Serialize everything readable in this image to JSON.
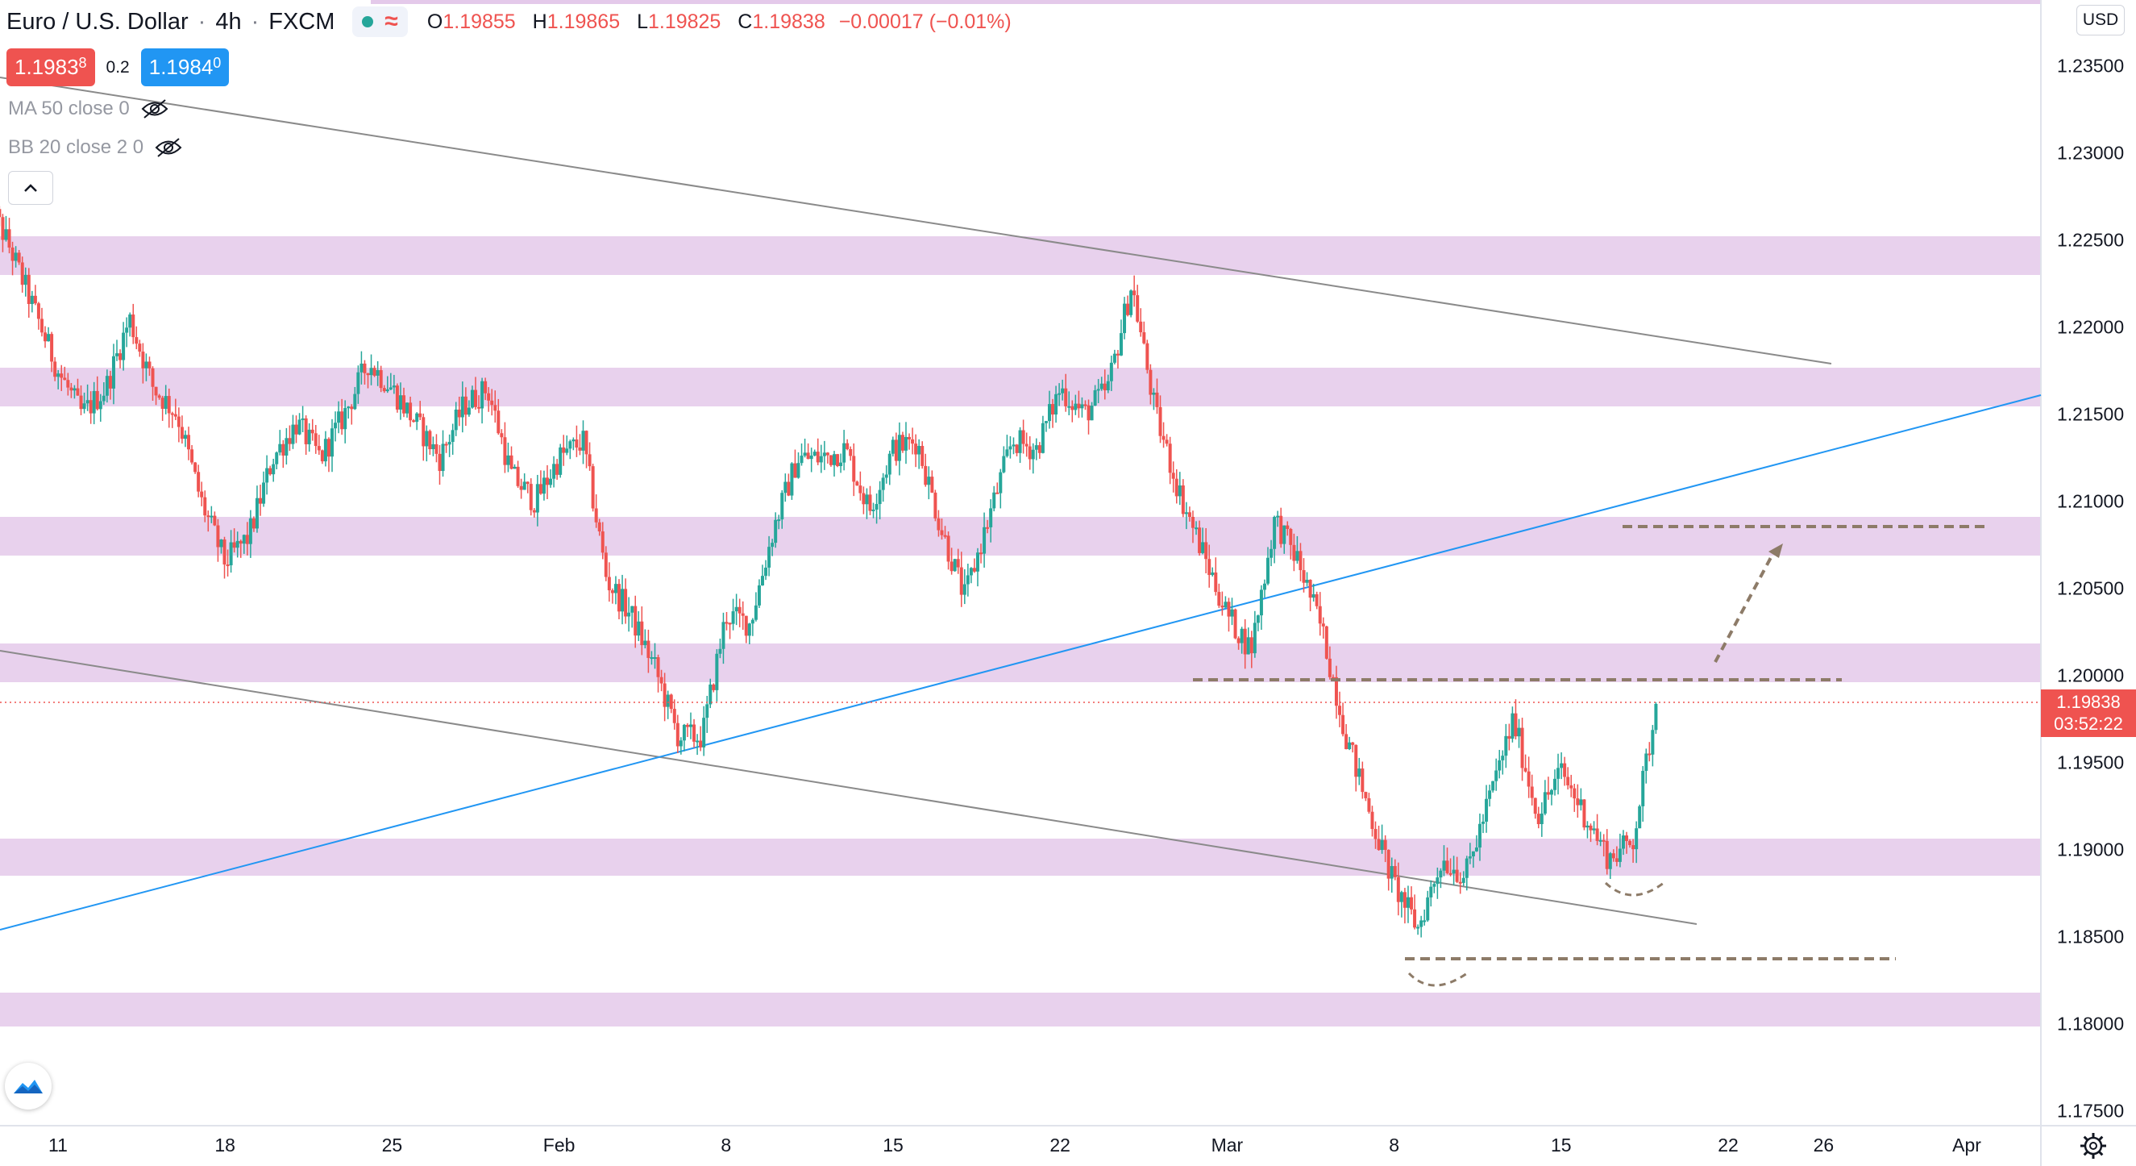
{
  "header": {
    "symbol": "Euro / U.S. Dollar",
    "interval": "4h",
    "exchange": "FXCM",
    "open_label": "O",
    "open": "1.19855",
    "high_label": "H",
    "high": "1.19865",
    "low_label": "L",
    "low": "1.19825",
    "close_label": "C",
    "close": "1.19838",
    "change": "−0.00017 (−0.01%)"
  },
  "prices": {
    "bid_main": "1.1983",
    "bid_sup": "8",
    "spread": "0.2",
    "ask_main": "1.1984",
    "ask_sup": "0"
  },
  "indicators": [
    {
      "label": "MA 50 close 0"
    },
    {
      "label": "BB 20 close 2 0"
    }
  ],
  "currency_button": "USD",
  "last_price": {
    "value": "1.19838",
    "countdown": "03:52:22"
  },
  "colors": {
    "up": "#26a69a",
    "down": "#ef5350",
    "zone": "#e4c9ea",
    "trend_gray": "#8a8a8a",
    "trend_blue": "#2196f3",
    "annotation": "#8d7b68"
  },
  "icons": [
    "eye-off-icon",
    "chevron-up-icon",
    "tradingview-logo-icon",
    "settings-gear-icon"
  ],
  "chart_data": {
    "type": "candlestick",
    "title": "Euro / U.S. Dollar",
    "interval": "4h",
    "xlabel": "",
    "ylabel": "",
    "ylim": [
      1.1725,
      1.2385
    ],
    "x_tick_labels": [
      "11",
      "18",
      "25",
      "Feb",
      "8",
      "15",
      "22",
      "Mar",
      "8",
      "15",
      "22",
      "26",
      "Apr"
    ],
    "y_tick_values": [
      1.235,
      1.23,
      1.225,
      1.22,
      1.215,
      1.21,
      1.205,
      1.2,
      1.195,
      1.19,
      1.185,
      1.18,
      1.175
    ],
    "y_tick_labels": [
      "1.23500",
      "1.23000",
      "1.22500",
      "1.22000",
      "1.21500",
      "1.21000",
      "1.20500",
      "1.20000",
      "1.19500",
      "1.19000",
      "1.18500",
      "1.18000",
      "1.17500"
    ],
    "last_price": 1.19838,
    "close_path": [
      {
        "date": "Jan 8",
        "price": 1.2275
      },
      {
        "date": "Jan 9",
        "price": 1.2245
      },
      {
        "date": "Jan 11",
        "price": 1.2175
      },
      {
        "date": "Jan 12",
        "price": 1.215
      },
      {
        "date": "Jan 13",
        "price": 1.2165
      },
      {
        "date": "Jan 14",
        "price": 1.2205
      },
      {
        "date": "Jan 15",
        "price": 1.2165
      },
      {
        "date": "Jan 16",
        "price": 1.215
      },
      {
        "date": "Jan 17",
        "price": 1.21
      },
      {
        "date": "Jan 18",
        "price": 1.2065
      },
      {
        "date": "Jan 19",
        "price": 1.208
      },
      {
        "date": "Jan 20",
        "price": 1.2125
      },
      {
        "date": "Jan 21",
        "price": 1.2145
      },
      {
        "date": "Jan 22",
        "price": 1.2125
      },
      {
        "date": "Jan 23",
        "price": 1.215
      },
      {
        "date": "Jan 24",
        "price": 1.218
      },
      {
        "date": "Jan 25",
        "price": 1.2165
      },
      {
        "date": "Jan 26",
        "price": 1.2145
      },
      {
        "date": "Jan 27",
        "price": 1.2125
      },
      {
        "date": "Jan 28",
        "price": 1.2155
      },
      {
        "date": "Jan 29",
        "price": 1.2165
      },
      {
        "date": "Jan 30",
        "price": 1.2115
      },
      {
        "date": "Jan 31",
        "price": 1.21
      },
      {
        "date": "Feb 1",
        "price": 1.2125
      },
      {
        "date": "Feb 2",
        "price": 1.2135
      },
      {
        "date": "Feb 3",
        "price": 1.2055
      },
      {
        "date": "Feb 4",
        "price": 1.2035
      },
      {
        "date": "Feb 5",
        "price": 1.2005
      },
      {
        "date": "Feb 6",
        "price": 1.1965
      },
      {
        "date": "Feb 7",
        "price": 1.1965
      },
      {
        "date": "Feb 8",
        "price": 1.2035
      },
      {
        "date": "Feb 9",
        "price": 1.203
      },
      {
        "date": "Feb 10",
        "price": 1.2085
      },
      {
        "date": "Feb 11",
        "price": 1.2125
      },
      {
        "date": "Feb 12",
        "price": 1.2125
      },
      {
        "date": "Feb 13",
        "price": 1.213
      },
      {
        "date": "Feb 14",
        "price": 1.2095
      },
      {
        "date": "Feb 15",
        "price": 1.213
      },
      {
        "date": "Feb 16",
        "price": 1.2135
      },
      {
        "date": "Feb 17",
        "price": 1.2085
      },
      {
        "date": "Feb 18",
        "price": 1.2045
      },
      {
        "date": "Feb 19",
        "price": 1.209
      },
      {
        "date": "Feb 20",
        "price": 1.2135
      },
      {
        "date": "Feb 21",
        "price": 1.213
      },
      {
        "date": "Feb 22",
        "price": 1.2165
      },
      {
        "date": "Feb 23",
        "price": 1.215
      },
      {
        "date": "Feb 24",
        "price": 1.2165
      },
      {
        "date": "Feb 25",
        "price": 1.2225
      },
      {
        "date": "Feb 26",
        "price": 1.215
      },
      {
        "date": "Feb 27",
        "price": 1.2105
      },
      {
        "date": "Feb 28",
        "price": 1.207
      },
      {
        "date": "Mar 1",
        "price": 1.2035
      },
      {
        "date": "Mar 2",
        "price": 1.2015
      },
      {
        "date": "Mar 3",
        "price": 1.209
      },
      {
        "date": "Mar 4",
        "price": 1.2065
      },
      {
        "date": "Mar 5",
        "price": 1.2025
      },
      {
        "date": "Mar 6",
        "price": 1.1965
      },
      {
        "date": "Mar 7",
        "price": 1.192
      },
      {
        "date": "Mar 8",
        "price": 1.188
      },
      {
        "date": "Mar 9",
        "price": 1.1855
      },
      {
        "date": "Mar 10",
        "price": 1.1895
      },
      {
        "date": "Mar 11",
        "price": 1.1885
      },
      {
        "date": "Mar 12",
        "price": 1.193
      },
      {
        "date": "Mar 13",
        "price": 1.1975
      },
      {
        "date": "Mar 14",
        "price": 1.192
      },
      {
        "date": "Mar 15",
        "price": 1.1945
      },
      {
        "date": "Mar 16",
        "price": 1.192
      },
      {
        "date": "Mar 17",
        "price": 1.1895
      },
      {
        "date": "Mar 18",
        "price": 1.1905
      },
      {
        "date": "Mar 19",
        "price": 1.19838
      }
    ]
  }
}
